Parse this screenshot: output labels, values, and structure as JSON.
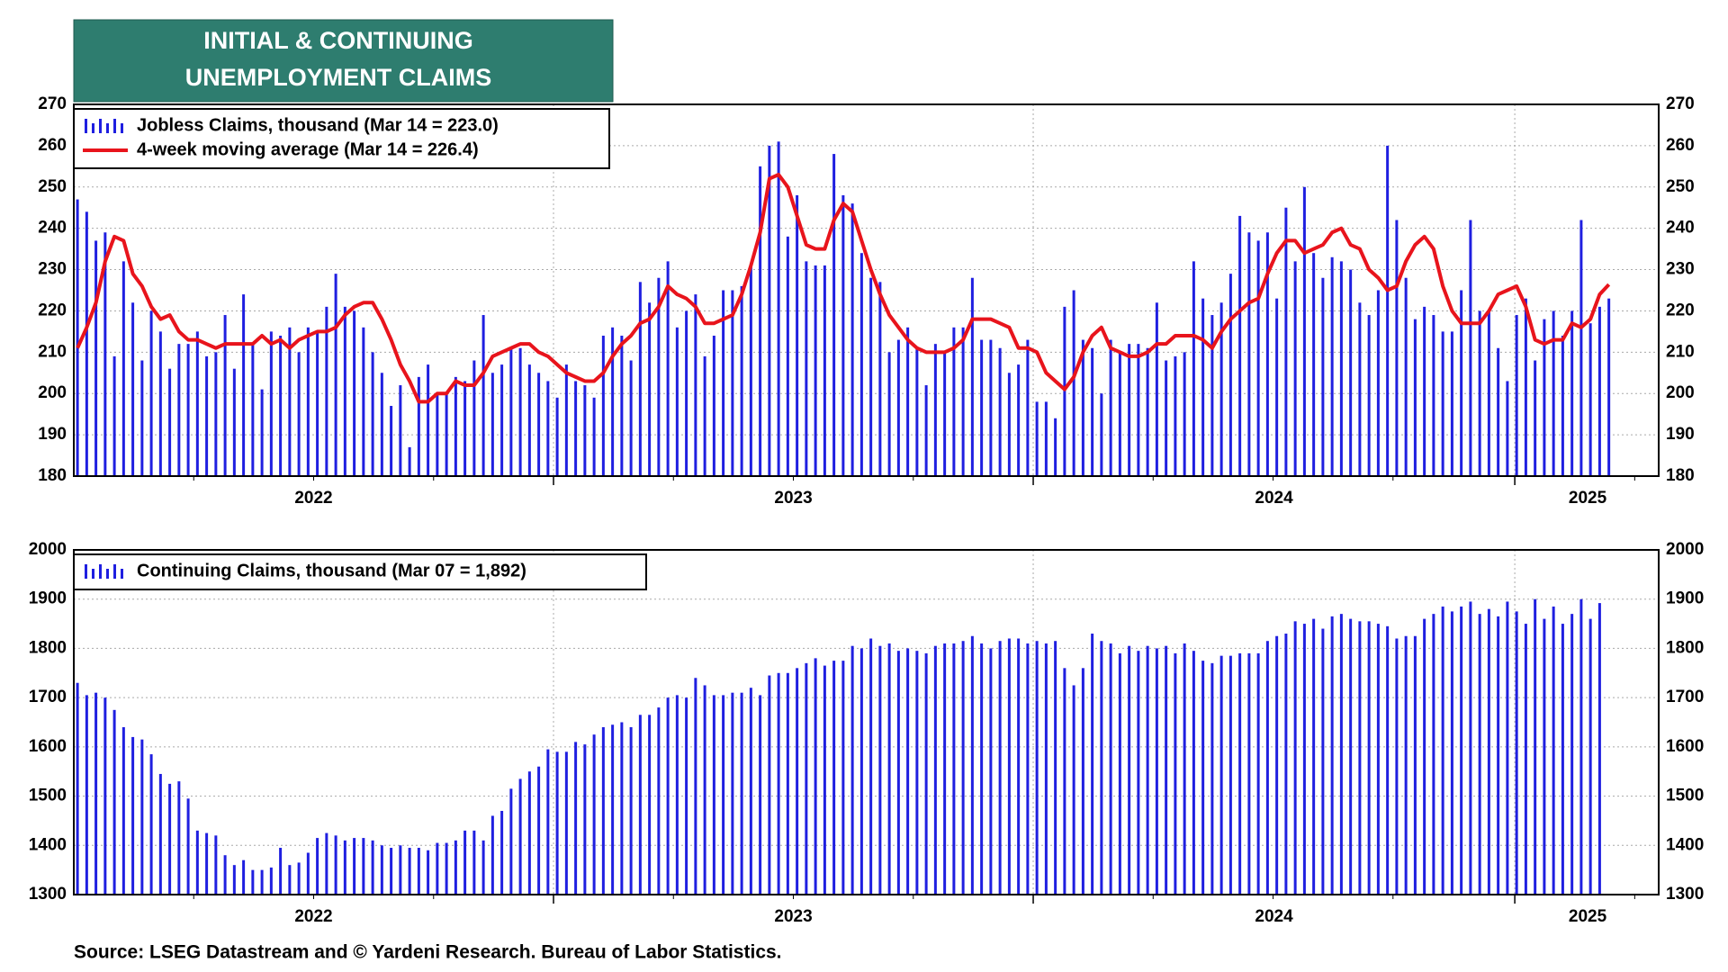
{
  "title_lines": [
    "INITIAL & CONTINUING",
    "UNEMPLOYMENT CLAIMS"
  ],
  "source": "Source: LSEG Datastream and © Yardeni Research. Bureau of Labor Statistics.",
  "chart_data": [
    {
      "type": "bar",
      "legend": "upper left",
      "grid": true,
      "ylim": [
        180,
        270
      ],
      "yticks": [
        180,
        190,
        200,
        210,
        220,
        230,
        240,
        250,
        260,
        270
      ],
      "xlim": [
        -0.4,
        171.4
      ],
      "xticks": [
        51.6,
        103.6,
        155.8
      ],
      "xminorticks": [
        12.6,
        25.6,
        38.6,
        64.6,
        77.6,
        90.6,
        116.6,
        129.6,
        142.6,
        168.8
      ],
      "xlabels": [
        {
          "value": 25.6,
          "label": "2022"
        },
        {
          "value": 77.6,
          "label": "2023"
        },
        {
          "value": 129.7,
          "label": "2024"
        },
        {
          "value": 163.7,
          "label": "2025"
        }
      ],
      "series": [
        {
          "name": "Jobless Claims, thousand (Mar 14 = 223.0)",
          "type": "bar",
          "color": "#1f1fe0",
          "values": [
            247,
            244,
            237,
            239,
            209,
            232,
            222,
            208,
            220,
            215,
            206,
            212,
            212,
            215,
            209,
            210,
            219,
            206,
            224,
            212,
            201,
            215,
            214,
            216,
            210,
            216,
            215,
            221,
            229,
            221,
            220,
            216,
            210,
            205,
            197,
            202,
            187,
            204,
            207,
            200,
            200,
            204,
            203,
            208,
            219,
            205,
            207,
            211,
            211,
            207,
            205,
            203,
            199,
            207,
            203,
            202,
            199,
            214,
            216,
            214,
            208,
            227,
            222,
            228,
            232,
            216,
            220,
            224,
            209,
            214,
            225,
            225,
            226,
            231,
            255,
            260,
            261,
            238,
            248,
            232,
            231,
            231,
            258,
            248,
            246,
            234,
            228,
            227,
            210,
            213,
            216,
            211,
            202,
            212,
            210,
            216,
            216,
            228,
            213,
            213,
            211,
            205,
            207,
            213,
            198,
            198,
            194,
            221,
            225,
            213,
            211,
            200,
            213,
            210,
            212,
            212,
            211,
            222,
            208,
            209,
            210,
            232,
            223,
            219,
            222,
            229,
            243,
            239,
            237,
            239,
            223,
            245,
            232,
            250,
            234,
            228,
            233,
            232,
            230,
            222,
            219,
            225,
            260,
            242,
            228,
            218,
            221,
            219,
            215,
            215,
            225,
            242,
            220,
            220,
            211,
            203,
            219,
            223,
            208,
            218,
            220,
            214,
            220,
            242,
            217,
            221,
            223
          ]
        },
        {
          "name": "4-week moving average (Mar 14 = 226.4)",
          "type": "line",
          "color": "#e8141c",
          "values": [
            211,
            216,
            222,
            232,
            238,
            237,
            229,
            226,
            221,
            218,
            219,
            215,
            213,
            213,
            212,
            211,
            212,
            212,
            212,
            212,
            214,
            212,
            213,
            211,
            213,
            214,
            215,
            215,
            216,
            219,
            221,
            222,
            222,
            218,
            213,
            207,
            203,
            198,
            198,
            200,
            200,
            203,
            202,
            202,
            205,
            209,
            210,
            211,
            212,
            212,
            210,
            209,
            207,
            205,
            204,
            203,
            203,
            205,
            209,
            212,
            214,
            217,
            218,
            221,
            226,
            224,
            223,
            221,
            217,
            217,
            218,
            219,
            224,
            231,
            239,
            252,
            253,
            250,
            243,
            236,
            235,
            235,
            242,
            246,
            244,
            237,
            230,
            224,
            219,
            216,
            213,
            211,
            210,
            210,
            210,
            211,
            213,
            218,
            218,
            218,
            217,
            216,
            211,
            211,
            210,
            205,
            203,
            201,
            204,
            210,
            214,
            216,
            211,
            210,
            209,
            209,
            210,
            212,
            212,
            214,
            214,
            214,
            213,
            211,
            215,
            218,
            220,
            222,
            223,
            229,
            234,
            237,
            237,
            234,
            235,
            236,
            239,
            240,
            236,
            235,
            230,
            228,
            225,
            226,
            232,
            236,
            238,
            235,
            226,
            220,
            217,
            217,
            217,
            220,
            224,
            225,
            226,
            221,
            213,
            212,
            213,
            213,
            217,
            216,
            218,
            224,
            226.4
          ]
        }
      ]
    },
    {
      "type": "bar",
      "legend": "upper left",
      "grid": true,
      "ylim": [
        1300,
        2000
      ],
      "yticks": [
        1300,
        1400,
        1500,
        1600,
        1700,
        1800,
        1900,
        2000
      ],
      "xlim": [
        -0.4,
        171.4
      ],
      "xticks": [
        51.6,
        103.6,
        155.8
      ],
      "xminorticks": [
        12.6,
        25.6,
        38.6,
        64.6,
        77.6,
        90.6,
        116.6,
        129.6,
        142.6,
        168.8
      ],
      "xlabels": [
        {
          "value": 25.6,
          "label": "2022"
        },
        {
          "value": 77.6,
          "label": "2023"
        },
        {
          "value": 129.7,
          "label": "2024"
        },
        {
          "value": 163.7,
          "label": "2025"
        }
      ],
      "series": [
        {
          "name": "Continuing Claims, thousand (Mar 07 = 1,892)",
          "type": "bar",
          "color": "#1f1fe0",
          "values": [
            1730,
            1705,
            1710,
            1700,
            1675,
            1640,
            1620,
            1615,
            1585,
            1545,
            1525,
            1530,
            1495,
            1430,
            1425,
            1420,
            1380,
            1360,
            1370,
            1350,
            1350,
            1355,
            1395,
            1360,
            1365,
            1385,
            1415,
            1425,
            1420,
            1410,
            1415,
            1415,
            1410,
            1400,
            1395,
            1400,
            1395,
            1395,
            1390,
            1405,
            1405,
            1410,
            1430,
            1430,
            1410,
            1460,
            1470,
            1515,
            1535,
            1550,
            1560,
            1595,
            1590,
            1590,
            1610,
            1605,
            1625,
            1640,
            1645,
            1650,
            1640,
            1665,
            1665,
            1680,
            1700,
            1705,
            1700,
            1740,
            1725,
            1705,
            1705,
            1710,
            1710,
            1720,
            1705,
            1745,
            1750,
            1750,
            1760,
            1770,
            1780,
            1765,
            1775,
            1775,
            1805,
            1800,
            1820,
            1805,
            1810,
            1795,
            1800,
            1795,
            1790,
            1805,
            1810,
            1810,
            1815,
            1825,
            1810,
            1800,
            1815,
            1820,
            1820,
            1810,
            1815,
            1810,
            1815,
            1760,
            1725,
            1760,
            1830,
            1815,
            1810,
            1790,
            1805,
            1795,
            1805,
            1800,
            1805,
            1790,
            1810,
            1795,
            1775,
            1770,
            1785,
            1785,
            1790,
            1790,
            1790,
            1815,
            1825,
            1830,
            1855,
            1850,
            1860,
            1840,
            1865,
            1870,
            1860,
            1855,
            1855,
            1850,
            1845,
            1820,
            1825,
            1825,
            1860,
            1870,
            1885,
            1875,
            1885,
            1895,
            1870,
            1880,
            1865,
            1895,
            1875,
            1850,
            1900,
            1860,
            1885,
            1850,
            1870,
            1900,
            1860,
            1892
          ]
        }
      ]
    }
  ]
}
